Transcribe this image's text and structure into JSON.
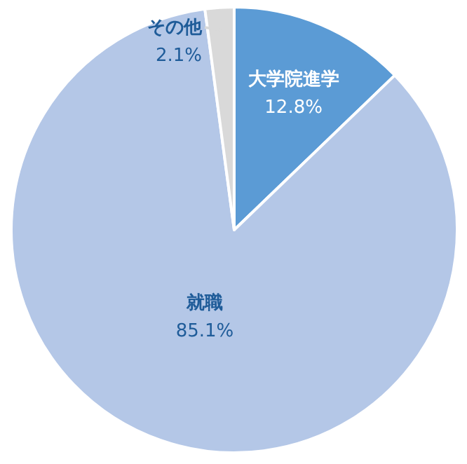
{
  "chart_data": {
    "type": "pie",
    "categories": [
      "大学院進学",
      "就職",
      "その他"
    ],
    "values": [
      12.8,
      85.1,
      2.1
    ],
    "colors": [
      "#5b9bd5",
      "#b4c7e7",
      "#d9d9d9"
    ],
    "value_labels": [
      "12.8%",
      "85.1%",
      "2.1%"
    ]
  }
}
